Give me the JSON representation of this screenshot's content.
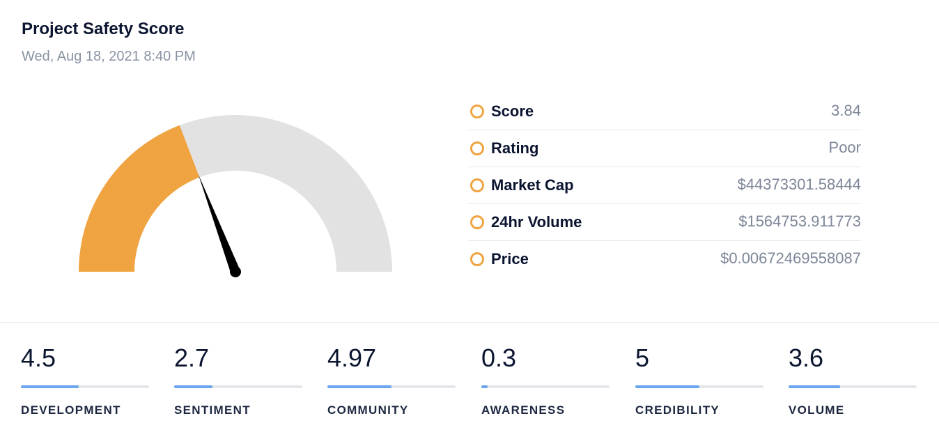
{
  "header": {
    "title": "Project Safety Score",
    "timestamp": "Wed, Aug 18, 2021 8:40 PM"
  },
  "gauge": {
    "score": 3.84,
    "max": 10,
    "fill_color": "#f0a441",
    "track_color": "#e2e2e2",
    "needle_color": "#000000"
  },
  "metrics": [
    {
      "label": "Score",
      "value": "3.84"
    },
    {
      "label": "Rating",
      "value": "Poor"
    },
    {
      "label": "Market Cap",
      "value": "$44373301.58444"
    },
    {
      "label": "24hr Volume",
      "value": "$1564753.911773"
    },
    {
      "label": "Price",
      "value": "$0.00672469558087"
    }
  ],
  "metric_icon_color": "#f0a441",
  "categories": [
    {
      "name": "DEVELOPMENT",
      "value": "4.5",
      "fraction": 0.45
    },
    {
      "name": "SENTIMENT",
      "value": "2.7",
      "fraction": 0.3
    },
    {
      "name": "COMMUNITY",
      "value": "4.97",
      "fraction": 0.5
    },
    {
      "name": "AWARENESS",
      "value": "0.3",
      "fraction": 0.05
    },
    {
      "name": "CREDIBILITY",
      "value": "5",
      "fraction": 0.5
    },
    {
      "name": "VOLUME",
      "value": "3.6",
      "fraction": 0.4
    }
  ]
}
